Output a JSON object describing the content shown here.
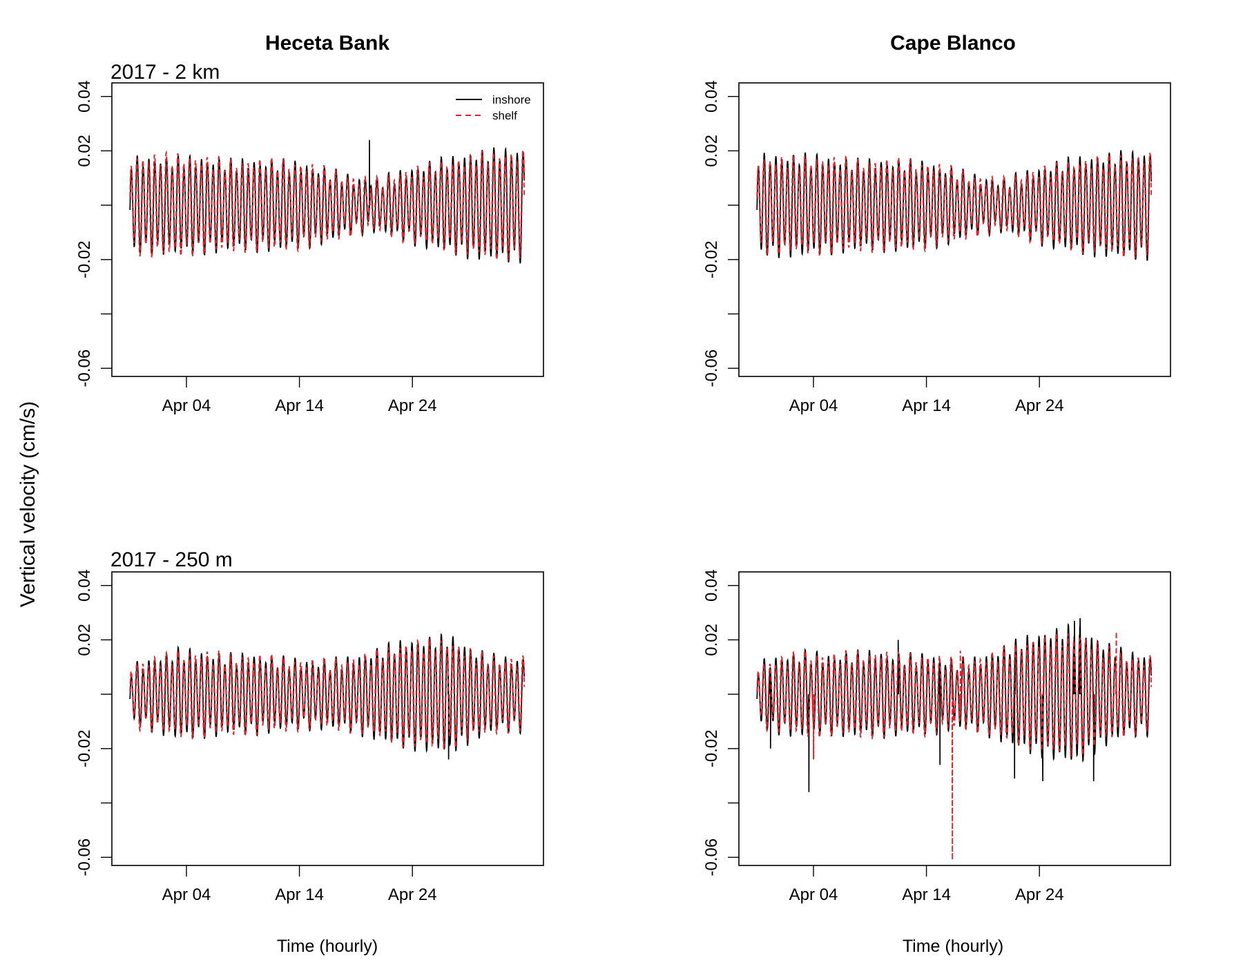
{
  "figure": {
    "ylabel": "Vertical velocity (cm/s)"
  },
  "colors": {
    "inshore": "#000000",
    "shelf": "#e8202a"
  },
  "chart_data": [
    {
      "type": "line",
      "column_title": "Heceta Bank",
      "subtitle": "2017 - 2 km",
      "xlabel": "",
      "xticks": [
        "Apr 04",
        "Apr 14",
        "Apr 24"
      ],
      "yticks": [
        "0.04",
        "0.02",
        "",
        "-0.02",
        "",
        "-0.06"
      ],
      "ylim": [
        -0.063,
        0.045
      ],
      "legend": {
        "placement": "top-right",
        "entries": [
          "inshore",
          "shelf"
        ]
      },
      "series": [
        {
          "name": "inshore",
          "style": "solid",
          "amp": [
            0.016,
            0.016,
            0.016,
            0.016,
            0.015,
            0.015,
            0.015,
            0.014,
            0.012,
            0.009,
            0.008,
            0.011,
            0.014,
            0.016,
            0.018,
            0.019,
            0.019
          ],
          "spikes": [
            [
              16.2,
              0.024
            ]
          ]
        },
        {
          "name": "shelf",
          "style": "dashed",
          "amp": [
            0.016,
            0.017,
            0.017,
            0.016,
            0.015,
            0.015,
            0.015,
            0.014,
            0.012,
            0.009,
            0.008,
            0.011,
            0.013,
            0.015,
            0.017,
            0.018,
            0.018
          ],
          "spikes": []
        }
      ]
    },
    {
      "type": "line",
      "column_title": "Cape Blanco",
      "subtitle": "",
      "xlabel": "",
      "xticks": [
        "Apr 04",
        "Apr 14",
        "Apr 24"
      ],
      "yticks": [
        "0.04",
        "0.02",
        "",
        "-0.02",
        "",
        "-0.06"
      ],
      "ylim": [
        -0.063,
        0.045
      ],
      "series": [
        {
          "name": "inshore",
          "style": "solid",
          "amp": [
            0.017,
            0.017,
            0.017,
            0.016,
            0.015,
            0.015,
            0.015,
            0.014,
            0.012,
            0.009,
            0.008,
            0.011,
            0.014,
            0.016,
            0.017,
            0.018,
            0.018
          ],
          "spikes": []
        },
        {
          "name": "shelf",
          "style": "dashed",
          "amp": [
            0.016,
            0.016,
            0.016,
            0.016,
            0.015,
            0.015,
            0.015,
            0.014,
            0.012,
            0.009,
            0.008,
            0.011,
            0.013,
            0.015,
            0.016,
            0.017,
            0.017
          ],
          "spikes": []
        }
      ]
    },
    {
      "type": "line",
      "column_title": "",
      "subtitle": "2017 - 250 m",
      "xlabel": "Time (hourly)",
      "xticks": [
        "Apr 04",
        "Apr 14",
        "Apr 24"
      ],
      "yticks": [
        "0.04",
        "0.02",
        "",
        "-0.02",
        "",
        "-0.06"
      ],
      "ylim": [
        -0.063,
        0.045
      ],
      "series": [
        {
          "name": "inshore",
          "style": "solid",
          "amp": [
            0.009,
            0.012,
            0.015,
            0.014,
            0.013,
            0.013,
            0.012,
            0.011,
            0.011,
            0.012,
            0.015,
            0.018,
            0.019,
            0.02,
            0.015,
            0.012,
            0.012
          ],
          "spikes": [
            [
              23.2,
              -0.024
            ]
          ]
        },
        {
          "name": "shelf",
          "style": "dashed",
          "amp": [
            0.01,
            0.012,
            0.014,
            0.014,
            0.013,
            0.013,
            0.012,
            0.011,
            0.011,
            0.012,
            0.014,
            0.017,
            0.018,
            0.018,
            0.014,
            0.012,
            0.012
          ],
          "spikes": []
        }
      ]
    },
    {
      "type": "line",
      "column_title": "",
      "subtitle": "",
      "xlabel": "Time (hourly)",
      "xticks": [
        "Apr 04",
        "Apr 14",
        "Apr 24"
      ],
      "yticks": [
        "0.04",
        "0.02",
        "",
        "-0.02",
        "",
        "-0.06"
      ],
      "ylim": [
        -0.063,
        0.045
      ],
      "series": [
        {
          "name": "inshore",
          "style": "solid",
          "amp": [
            0.01,
            0.013,
            0.014,
            0.013,
            0.014,
            0.014,
            0.013,
            0.013,
            0.011,
            0.012,
            0.016,
            0.02,
            0.022,
            0.024,
            0.018,
            0.014,
            0.013
          ],
          "spikes": [
            [
              -3.8,
              -0.02
            ],
            [
              -0.4,
              -0.036
            ],
            [
              7.5,
              0.02
            ],
            [
              11.2,
              -0.026
            ],
            [
              17.8,
              -0.031
            ],
            [
              20.3,
              -0.032
            ],
            [
              23.1,
              0.027
            ],
            [
              23.6,
              0.028
            ],
            [
              24.8,
              -0.032
            ]
          ]
        },
        {
          "name": "shelf",
          "style": "dashed",
          "amp": [
            0.01,
            0.012,
            0.014,
            0.013,
            0.014,
            0.014,
            0.013,
            0.013,
            0.011,
            0.012,
            0.015,
            0.018,
            0.02,
            0.021,
            0.016,
            0.013,
            0.012
          ],
          "spikes": [
            [
              0,
              -0.024
            ],
            [
              12.3,
              -0.061
            ],
            [
              13.0,
              0.016
            ],
            [
              26.8,
              0.023
            ]
          ]
        }
      ]
    }
  ]
}
